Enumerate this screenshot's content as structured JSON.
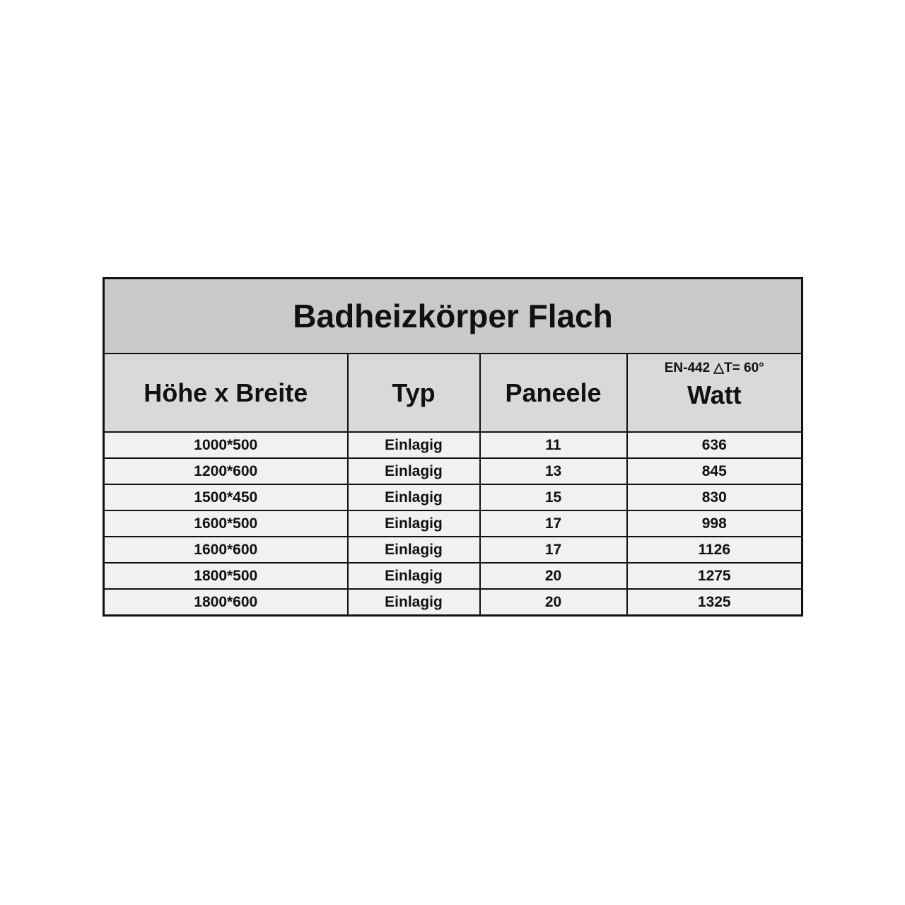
{
  "table": {
    "title": "Badheizkörper Flach",
    "headers": [
      "Höhe x Breite",
      "Typ",
      "Paneele",
      "Watt"
    ],
    "watt_note": "EN-442  △T= 60°",
    "rows": [
      [
        "1000*500",
        "Einlagig",
        "11",
        "636"
      ],
      [
        "1200*600",
        "Einlagig",
        "13",
        "845"
      ],
      [
        "1500*450",
        "Einlagig",
        "15",
        "830"
      ],
      [
        "1600*500",
        "Einlagig",
        "17",
        "998"
      ],
      [
        "1600*600",
        "Einlagig",
        "17",
        "1126"
      ],
      [
        "1800*500",
        "Einlagig",
        "20",
        "1275"
      ],
      [
        "1800*600",
        "Einlagig",
        "20",
        "1325"
      ]
    ]
  }
}
